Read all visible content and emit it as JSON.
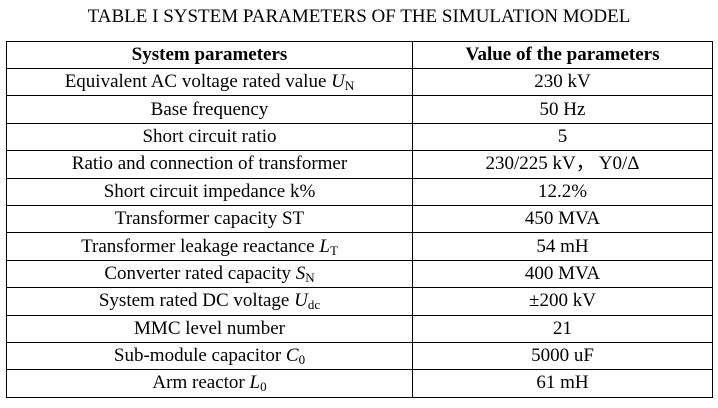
{
  "caption": "TABLE I SYSTEM PARAMETERS OF THE SIMULATION MODEL",
  "headers": {
    "param": "System parameters",
    "value": "Value of the parameters"
  },
  "rows": [
    {
      "label": "Equivalent AC voltage rated value ",
      "sym": "U",
      "sub": "N",
      "value": "230 kV"
    },
    {
      "label": "Base frequency",
      "sym": "",
      "sub": "",
      "value": "50 Hz"
    },
    {
      "label": "Short circuit ratio",
      "sym": "",
      "sub": "",
      "value": "5"
    },
    {
      "label": "Ratio and connection of transformer",
      "sym": "",
      "sub": "",
      "value": "230/225 kV， Y0/Δ"
    },
    {
      "label": "Short circuit impedance k%",
      "sym": "",
      "sub": "",
      "value": "12.2%"
    },
    {
      "label": "Transformer capacity ST",
      "sym": "",
      "sub": "",
      "value": "450 MVA"
    },
    {
      "label": "Transformer leakage reactance ",
      "sym": "L",
      "sub": "T",
      "value": "54 mH"
    },
    {
      "label": "Converter rated capacity ",
      "sym": "S",
      "sub": "N",
      "value": "400 MVA"
    },
    {
      "label": "System rated DC voltage ",
      "sym": "U",
      "sub": "dc",
      "value": "±200 kV"
    },
    {
      "label": "MMC level number",
      "sym": "",
      "sub": "",
      "value": "21"
    },
    {
      "label": "Sub-module capacitor ",
      "sym": "C",
      "sub": "0",
      "value": "5000 uF"
    },
    {
      "label": "Arm reactor ",
      "sym": "L",
      "sub": "0",
      "value": "61 mH"
    }
  ]
}
